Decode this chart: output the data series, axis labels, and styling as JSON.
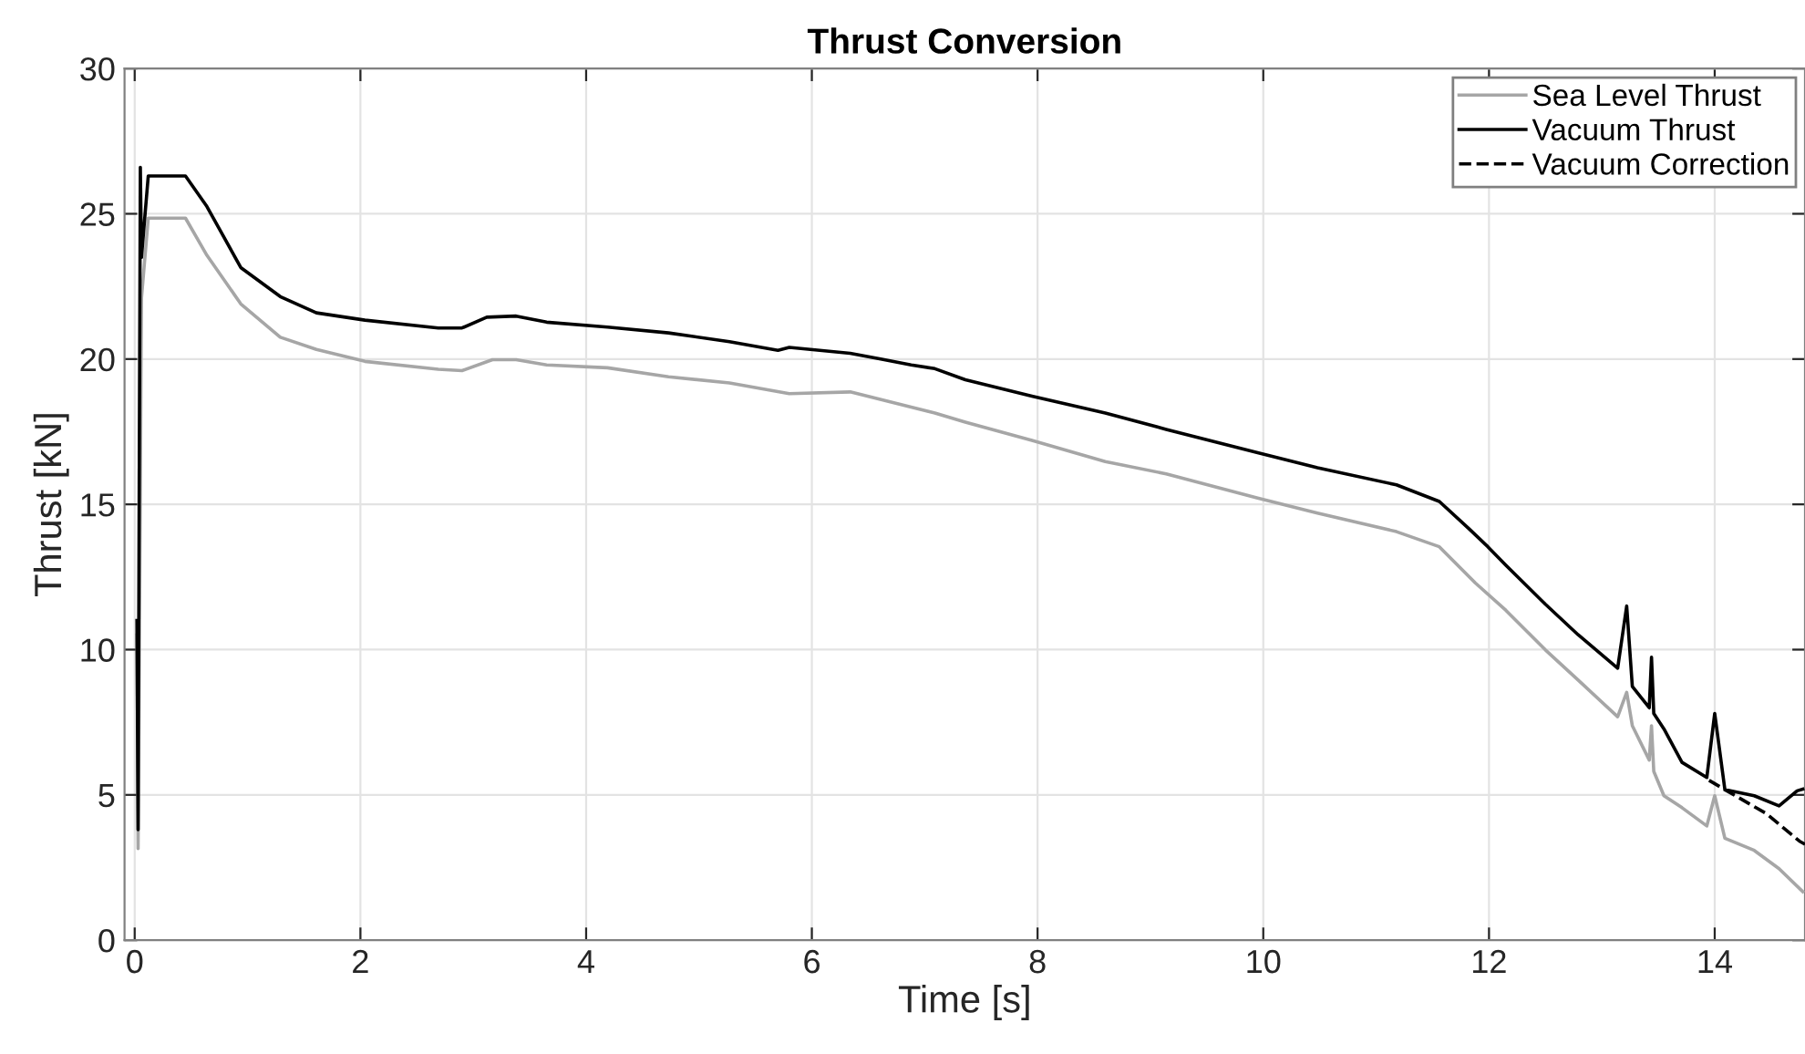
{
  "chart_data": {
    "type": "line",
    "title": "Thrust Conversion",
    "xlabel": "Time [s]",
    "ylabel": "Thrust [kN]",
    "xlim": [
      -0.09,
      14.8
    ],
    "ylim": [
      0,
      30
    ],
    "xticks": [
      0,
      2,
      4,
      6,
      8,
      10,
      12,
      14
    ],
    "yticks": [
      0,
      5,
      10,
      15,
      20,
      25,
      30
    ],
    "grid": true,
    "legend": "top right",
    "marker": "none",
    "series": [
      {
        "name": "Sea Level Thrust",
        "color": "#a6a6a6",
        "line_style": "solid",
        "x": [
          0.02,
          0.03,
          0.06,
          0.12,
          0.45,
          0.64,
          0.94,
          1.29,
          1.61,
          2.04,
          2.69,
          2.9,
          3.17,
          3.38,
          3.65,
          4.19,
          4.73,
          5.27,
          5.8,
          6.34,
          6.88,
          7.09,
          7.36,
          7.95,
          8.6,
          9.14,
          9.95,
          10.48,
          11.18,
          11.56,
          11.88,
          12.15,
          12.5,
          12.79,
          13.14,
          13.22,
          13.27,
          13.42,
          13.44,
          13.46,
          13.55,
          13.71,
          13.93,
          14.0,
          14.09,
          14.35,
          14.57,
          14.78
        ],
        "values": [
          10.5,
          3.15,
          22.1,
          24.85,
          24.85,
          23.57,
          21.9,
          20.75,
          20.33,
          19.92,
          19.65,
          19.6,
          19.98,
          19.98,
          19.8,
          19.7,
          19.39,
          19.18,
          18.81,
          18.87,
          18.35,
          18.14,
          17.83,
          17.2,
          16.47,
          16.05,
          15.22,
          14.7,
          14.06,
          13.54,
          12.29,
          11.35,
          9.99,
          8.95,
          7.69,
          8.53,
          7.38,
          6.2,
          7.38,
          5.81,
          4.97,
          4.56,
          3.93,
          4.97,
          3.51,
          3.09,
          2.46,
          1.67
        ]
      },
      {
        "name": "Vacuum Thrust",
        "color": "#000000",
        "line_style": "solid",
        "x": [
          0.02,
          0.03,
          0.04,
          0.05,
          0.06,
          0.12,
          0.45,
          0.64,
          0.94,
          1.29,
          1.61,
          2.04,
          2.69,
          2.9,
          3.12,
          3.38,
          3.65,
          4.19,
          4.73,
          5.27,
          5.7,
          5.8,
          6.34,
          6.61,
          6.88,
          7.09,
          7.36,
          7.95,
          8.6,
          9.14,
          9.95,
          10.48,
          11.18,
          11.56,
          11.82,
          11.99,
          12.15,
          12.5,
          12.79,
          13.14,
          13.22,
          13.27,
          13.42,
          13.44,
          13.46,
          13.55,
          13.71,
          13.93,
          14.0,
          14.09,
          14.35,
          14.57,
          14.73,
          14.78
        ],
        "values": [
          11.0,
          3.8,
          15.7,
          26.6,
          23.5,
          26.3,
          26.3,
          25.25,
          23.15,
          22.15,
          21.59,
          21.34,
          21.07,
          21.07,
          21.44,
          21.48,
          21.27,
          21.1,
          20.9,
          20.6,
          20.3,
          20.4,
          20.2,
          20.0,
          19.8,
          19.67,
          19.29,
          18.72,
          18.14,
          17.58,
          16.78,
          16.26,
          15.67,
          15.1,
          14.17,
          13.54,
          12.9,
          11.56,
          10.51,
          9.36,
          11.5,
          8.73,
          8.0,
          9.74,
          7.8,
          7.27,
          6.12,
          5.6,
          7.8,
          5.18,
          4.97,
          4.62,
          5.14,
          5.2
        ]
      },
      {
        "name": "Vacuum Correction",
        "color": "#000000",
        "line_style": "dashed",
        "x": [
          13.95,
          14.09,
          14.46,
          14.75,
          14.8
        ],
        "values": [
          5.5,
          5.18,
          4.35,
          3.41,
          3.3
        ]
      }
    ]
  }
}
